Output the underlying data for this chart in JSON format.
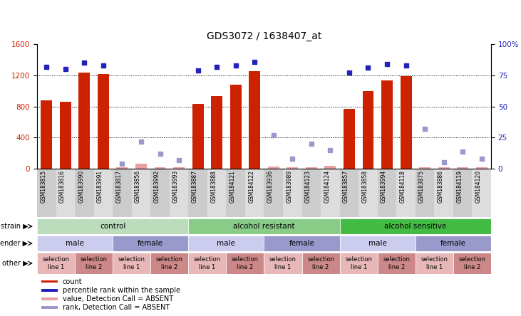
{
  "title": "GDS3072 / 1638407_at",
  "samples": [
    "GSM183815",
    "GSM183816",
    "GSM183990",
    "GSM183991",
    "GSM183817",
    "GSM183856",
    "GSM183992",
    "GSM183993",
    "GSM183887",
    "GSM183888",
    "GSM184121",
    "GSM184122",
    "GSM183936",
    "GSM183989",
    "GSM184123",
    "GSM184124",
    "GSM183857",
    "GSM183858",
    "GSM183994",
    "GSM184118",
    "GSM183875",
    "GSM183886",
    "GSM184119",
    "GSM184120"
  ],
  "bar_values": [
    880,
    860,
    1230,
    1220,
    null,
    null,
    null,
    null,
    830,
    930,
    1080,
    1250,
    null,
    null,
    null,
    null,
    770,
    1000,
    1130,
    1190,
    null,
    null,
    null,
    null
  ],
  "absent_bar_values": [
    null,
    null,
    null,
    null,
    20,
    60,
    20,
    20,
    null,
    null,
    null,
    null,
    30,
    20,
    20,
    40,
    null,
    null,
    null,
    null,
    20,
    20,
    20,
    20
  ],
  "rank_values": [
    82,
    80,
    85,
    83,
    null,
    null,
    null,
    null,
    79,
    82,
    83,
    86,
    null,
    null,
    null,
    null,
    77,
    81,
    84,
    83,
    null,
    null,
    null,
    null
  ],
  "absent_rank_values": [
    null,
    null,
    null,
    null,
    4,
    22,
    12,
    7,
    null,
    null,
    null,
    null,
    27,
    8,
    20,
    15,
    null,
    null,
    null,
    null,
    32,
    5,
    14,
    8
  ],
  "ylim_left": [
    0,
    1600
  ],
  "ylim_right": [
    0,
    100
  ],
  "yticks_left": [
    0,
    400,
    800,
    1200,
    1600
  ],
  "yticks_right": [
    0,
    25,
    50,
    75,
    100
  ],
  "bar_color": "#cc2200",
  "absent_bar_color": "#e8a0a0",
  "rank_color": "#2222bb",
  "absent_rank_color": "#9999cc",
  "grid_lines": [
    400,
    800,
    1200
  ],
  "strain_groups": [
    {
      "label": "control",
      "start": 0,
      "end": 8,
      "color": "#bbddbb"
    },
    {
      "label": "alcohol resistant",
      "start": 8,
      "end": 16,
      "color": "#88cc88"
    },
    {
      "label": "alcohol sensitive",
      "start": 16,
      "end": 24,
      "color": "#44bb44"
    }
  ],
  "gender_groups": [
    {
      "label": "male",
      "start": 0,
      "end": 4,
      "color": "#ccccee"
    },
    {
      "label": "female",
      "start": 4,
      "end": 8,
      "color": "#9999cc"
    },
    {
      "label": "male",
      "start": 8,
      "end": 12,
      "color": "#ccccee"
    },
    {
      "label": "female",
      "start": 12,
      "end": 16,
      "color": "#9999cc"
    },
    {
      "label": "male",
      "start": 16,
      "end": 20,
      "color": "#ccccee"
    },
    {
      "label": "female",
      "start": 20,
      "end": 24,
      "color": "#9999cc"
    }
  ],
  "other_groups": [
    {
      "label": "selection\nline 1",
      "start": 0,
      "end": 2,
      "color": "#e8b8b8"
    },
    {
      "label": "selection\nline 2",
      "start": 2,
      "end": 4,
      "color": "#cc8888"
    },
    {
      "label": "selection\nline 1",
      "start": 4,
      "end": 6,
      "color": "#e8b8b8"
    },
    {
      "label": "selection\nline 2",
      "start": 6,
      "end": 8,
      "color": "#cc8888"
    },
    {
      "label": "selection\nline 1",
      "start": 8,
      "end": 10,
      "color": "#e8b8b8"
    },
    {
      "label": "selection\nline 2",
      "start": 10,
      "end": 12,
      "color": "#cc8888"
    },
    {
      "label": "selection\nline 1",
      "start": 12,
      "end": 14,
      "color": "#e8b8b8"
    },
    {
      "label": "selection\nline 2",
      "start": 14,
      "end": 16,
      "color": "#cc8888"
    },
    {
      "label": "selection\nline 1",
      "start": 16,
      "end": 18,
      "color": "#e8b8b8"
    },
    {
      "label": "selection\nline 2",
      "start": 18,
      "end": 20,
      "color": "#cc8888"
    },
    {
      "label": "selection\nline 1",
      "start": 20,
      "end": 22,
      "color": "#e8b8b8"
    },
    {
      "label": "selection\nline 2",
      "start": 22,
      "end": 24,
      "color": "#cc8888"
    }
  ],
  "row_labels": [
    "strain",
    "gender",
    "other"
  ],
  "legend_items": [
    {
      "label": "count",
      "color": "#cc2200"
    },
    {
      "label": "percentile rank within the sample",
      "color": "#2222bb"
    },
    {
      "label": "value, Detection Call = ABSENT",
      "color": "#e8a0a0"
    },
    {
      "label": "rank, Detection Call = ABSENT",
      "color": "#9999cc"
    }
  ],
  "bg_color": "#f0f0f0",
  "plot_area_color": "#ffffff"
}
